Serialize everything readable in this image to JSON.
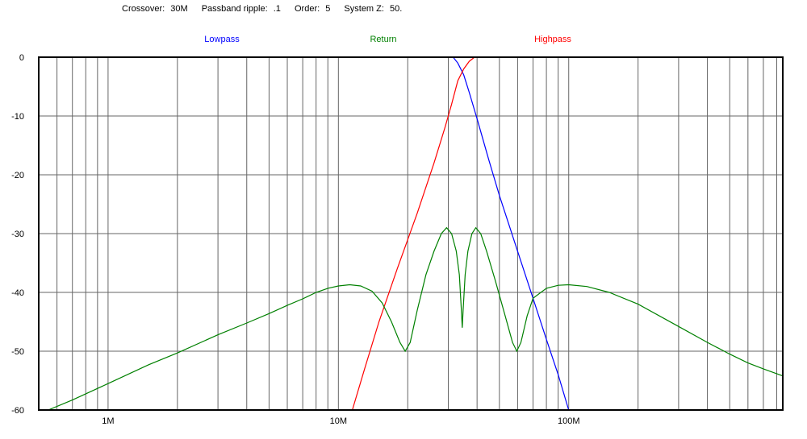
{
  "header": {
    "crossover_label": "Crossover:",
    "crossover_value": "30M",
    "ripple_label": "Passband ripple:",
    "ripple_value": ".1",
    "order_label": "Order:",
    "order_value": "5",
    "systemz_label": "System Z:",
    "systemz_value": "50."
  },
  "chart_data": {
    "type": "line",
    "xscale": "log",
    "xlim": [
      500000,
      850000000
    ],
    "ylim": [
      -60,
      0
    ],
    "grid": true,
    "legend_position": "top",
    "y_ticks": [
      {
        "value": 0,
        "label": "0"
      },
      {
        "value": -10,
        "label": "-10"
      },
      {
        "value": -20,
        "label": "-20"
      },
      {
        "value": -30,
        "label": "-30"
      },
      {
        "value": -40,
        "label": "-40"
      },
      {
        "value": -50,
        "label": "-50"
      },
      {
        "value": -60,
        "label": "-60"
      }
    ],
    "x_ticks": [
      {
        "value": 1000000,
        "label": "1M"
      },
      {
        "value": 10000000,
        "label": "10M"
      },
      {
        "value": 100000000,
        "label": "100M"
      }
    ],
    "series": [
      {
        "name": "Lowpass",
        "color": "#0000ff",
        "points": [
          [
            31500000,
            0
          ],
          [
            33000000,
            -1
          ],
          [
            35000000,
            -3
          ],
          [
            37000000,
            -6
          ],
          [
            40000000,
            -10.5
          ],
          [
            45000000,
            -17.5
          ],
          [
            50000000,
            -23.5
          ],
          [
            60000000,
            -33
          ],
          [
            70000000,
            -41
          ],
          [
            80000000,
            -48
          ],
          [
            90000000,
            -54
          ],
          [
            100000000,
            -60
          ]
        ]
      },
      {
        "name": "Highpass",
        "color": "#ff0000",
        "points": [
          [
            11500000,
            -60
          ],
          [
            13000000,
            -53
          ],
          [
            15000000,
            -45
          ],
          [
            18000000,
            -36
          ],
          [
            22000000,
            -26.5
          ],
          [
            26000000,
            -18
          ],
          [
            29000000,
            -12
          ],
          [
            31000000,
            -8
          ],
          [
            33000000,
            -4
          ],
          [
            35000000,
            -2
          ],
          [
            37000000,
            -0.7
          ],
          [
            39000000,
            0
          ]
        ]
      },
      {
        "name": "Return",
        "color": "#008000",
        "points": [
          [
            550000,
            -60
          ],
          [
            700000,
            -58.3
          ],
          [
            1000000,
            -55.5
          ],
          [
            1500000,
            -52.3
          ],
          [
            2000000,
            -50.3
          ],
          [
            3000000,
            -47.2
          ],
          [
            4000000,
            -45.2
          ],
          [
            5000000,
            -43.6
          ],
          [
            6000000,
            -42.2
          ],
          [
            7000000,
            -41.1
          ],
          [
            8000000,
            -40.0
          ],
          [
            9000000,
            -39.3
          ],
          [
            10000000,
            -38.9
          ],
          [
            11200000,
            -38.7
          ],
          [
            12500000,
            -38.9
          ],
          [
            14000000,
            -39.8
          ],
          [
            15500000,
            -41.8
          ],
          [
            17000000,
            -45
          ],
          [
            18500000,
            -48.5
          ],
          [
            19500000,
            -50
          ],
          [
            20500000,
            -48.5
          ],
          [
            22000000,
            -43
          ],
          [
            24000000,
            -37
          ],
          [
            26000000,
            -33
          ],
          [
            28000000,
            -30
          ],
          [
            29500000,
            -29
          ],
          [
            31000000,
            -30
          ],
          [
            32500000,
            -33
          ],
          [
            33500000,
            -37
          ],
          [
            34200000,
            -43
          ],
          [
            34500000,
            -46
          ],
          [
            34800000,
            -43
          ],
          [
            35500000,
            -37
          ],
          [
            36500000,
            -33
          ],
          [
            38000000,
            -30
          ],
          [
            39500000,
            -29
          ],
          [
            41500000,
            -30
          ],
          [
            44000000,
            -33
          ],
          [
            48000000,
            -38
          ],
          [
            53000000,
            -44
          ],
          [
            57000000,
            -48.5
          ],
          [
            59500000,
            -50
          ],
          [
            62000000,
            -48.5
          ],
          [
            66000000,
            -44
          ],
          [
            70000000,
            -41
          ],
          [
            80000000,
            -39.3
          ],
          [
            90000000,
            -38.8
          ],
          [
            100000000,
            -38.7
          ],
          [
            120000000,
            -39
          ],
          [
            150000000,
            -40
          ],
          [
            200000000,
            -42
          ],
          [
            300000000,
            -45.8
          ],
          [
            400000000,
            -48.5
          ],
          [
            500000000,
            -50.5
          ],
          [
            600000000,
            -52
          ],
          [
            700000000,
            -53
          ],
          [
            850000000,
            -54.2
          ]
        ]
      }
    ]
  }
}
